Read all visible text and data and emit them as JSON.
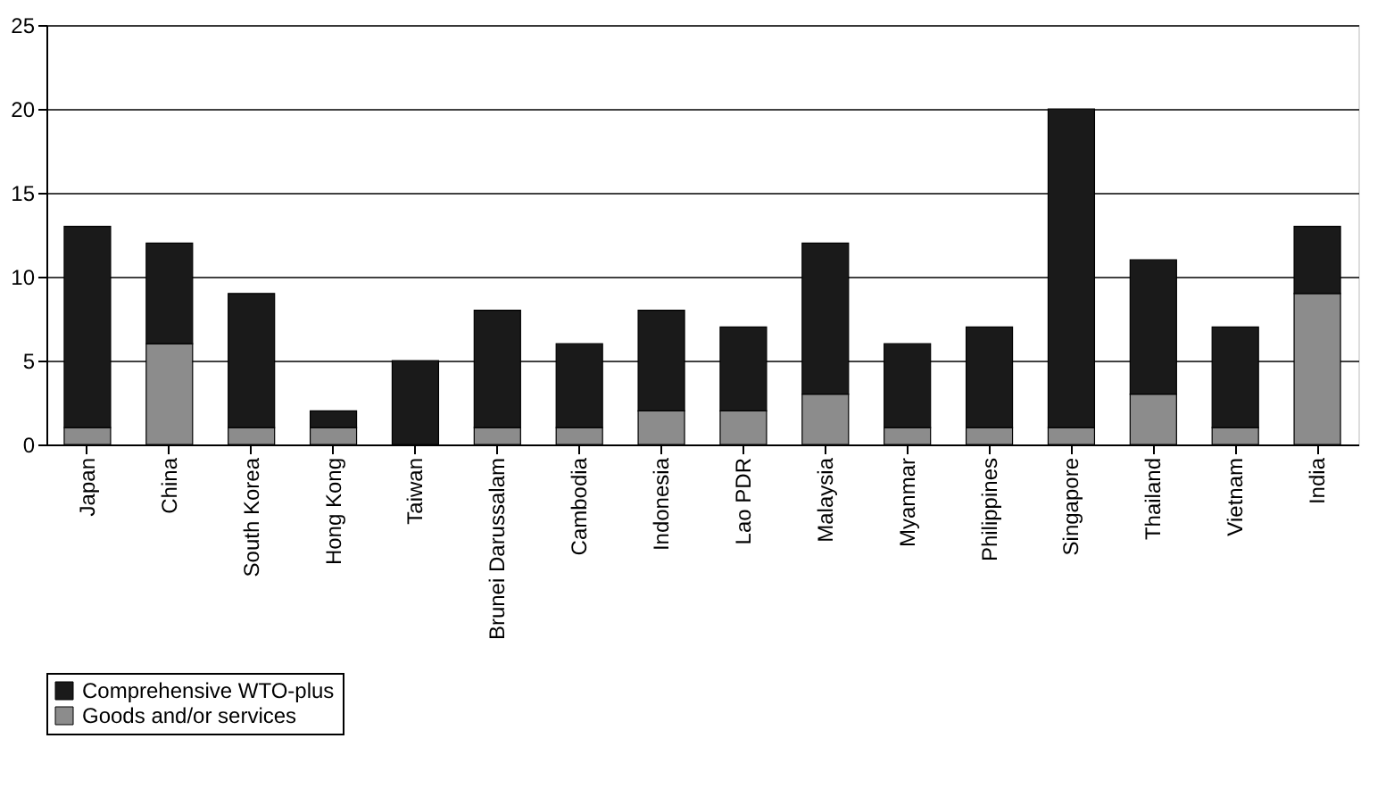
{
  "chart_data": {
    "type": "bar",
    "stacked": true,
    "categories": [
      "Japan",
      "China",
      "South Korea",
      "Hong Kong",
      "Taiwan",
      "Brunei Darussalam",
      "Cambodia",
      "Indonesia",
      "Lao PDR",
      "Malaysia",
      "Myanmar",
      "Philippines",
      "Singapore",
      "Thailand",
      "Vietnam",
      "India"
    ],
    "series": [
      {
        "name": "Goods and/or services",
        "color": "#8c8c8c",
        "values": [
          1,
          6,
          1,
          1,
          0,
          1,
          1,
          2,
          2,
          3,
          1,
          1,
          1,
          3,
          1,
          9
        ]
      },
      {
        "name": "Comprehensive WTO-plus",
        "color": "#1a1a1a",
        "values": [
          12,
          6,
          8,
          1,
          5,
          7,
          5,
          6,
          5,
          9,
          5,
          6,
          19,
          8,
          6,
          4
        ]
      }
    ],
    "ylim": [
      0,
      25
    ],
    "yticks": [
      0,
      5,
      10,
      15,
      20,
      25
    ],
    "grid": "y",
    "legend": "bottom"
  }
}
